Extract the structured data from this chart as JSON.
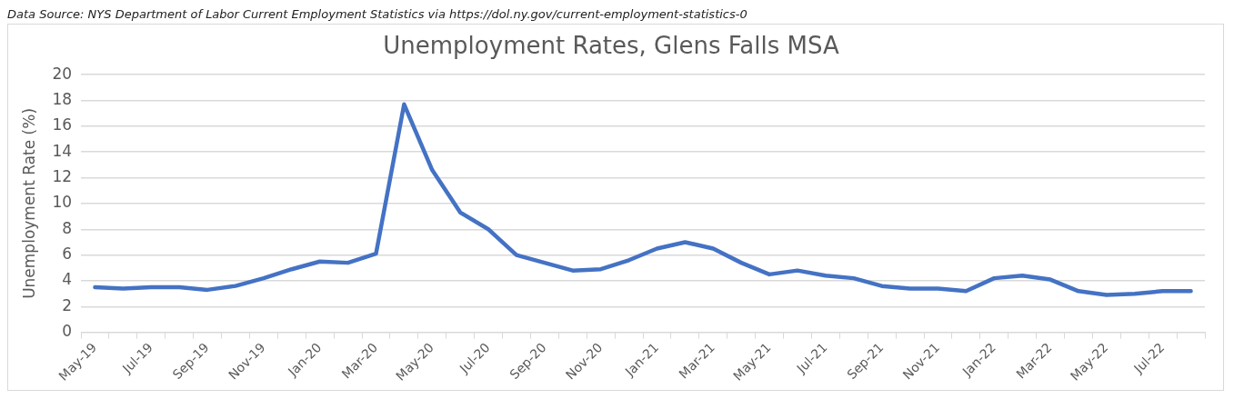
{
  "chart_data": {
    "type": "line",
    "title": "Unemployment Rates, Glens Falls MSA",
    "ylabel": "Unemployment Rate (%)",
    "annotations": [
      "Data Source: NYS Department of Labor Current Employment Statistics via https://dol.ny.gov/current-employment-statistics-0"
    ],
    "categories": [
      "May-19",
      null,
      "Jul-19",
      null,
      "Sep-19",
      null,
      "Nov-19",
      null,
      "Jan-20",
      null,
      "Mar-20",
      null,
      "May-20",
      null,
      "Jul-20",
      null,
      "Sep-20",
      null,
      "Nov-20",
      null,
      "Jan-21",
      null,
      "Mar-21",
      null,
      "May-21",
      null,
      "Jul-21",
      null,
      "Sep-21",
      null,
      "Nov-21",
      null,
      "Jan-22",
      null,
      "Mar-22",
      null,
      "May-22",
      null,
      "Jul-22",
      null
    ],
    "series": [
      {
        "color": "#4472c4",
        "values": [
          3.5,
          3.4,
          3.5,
          3.5,
          3.3,
          3.6,
          4.2,
          4.9,
          5.5,
          5.4,
          6.1,
          17.7,
          12.6,
          9.3,
          8.0,
          6.0,
          5.4,
          4.8,
          4.9,
          5.6,
          6.5,
          7.0,
          6.5,
          5.4,
          4.5,
          4.8,
          4.4,
          4.2,
          3.6,
          3.4,
          3.4,
          3.2,
          4.2,
          4.4,
          4.1,
          3.2,
          2.9,
          3.0,
          3.2,
          3.2
        ]
      }
    ],
    "ylim": [
      0,
      20
    ],
    "yticks": [
      0,
      2,
      4,
      6,
      8,
      10,
      12,
      14,
      16,
      18,
      20
    ],
    "grid": "y",
    "legend": false,
    "marker": "none",
    "line_style": "solid"
  }
}
